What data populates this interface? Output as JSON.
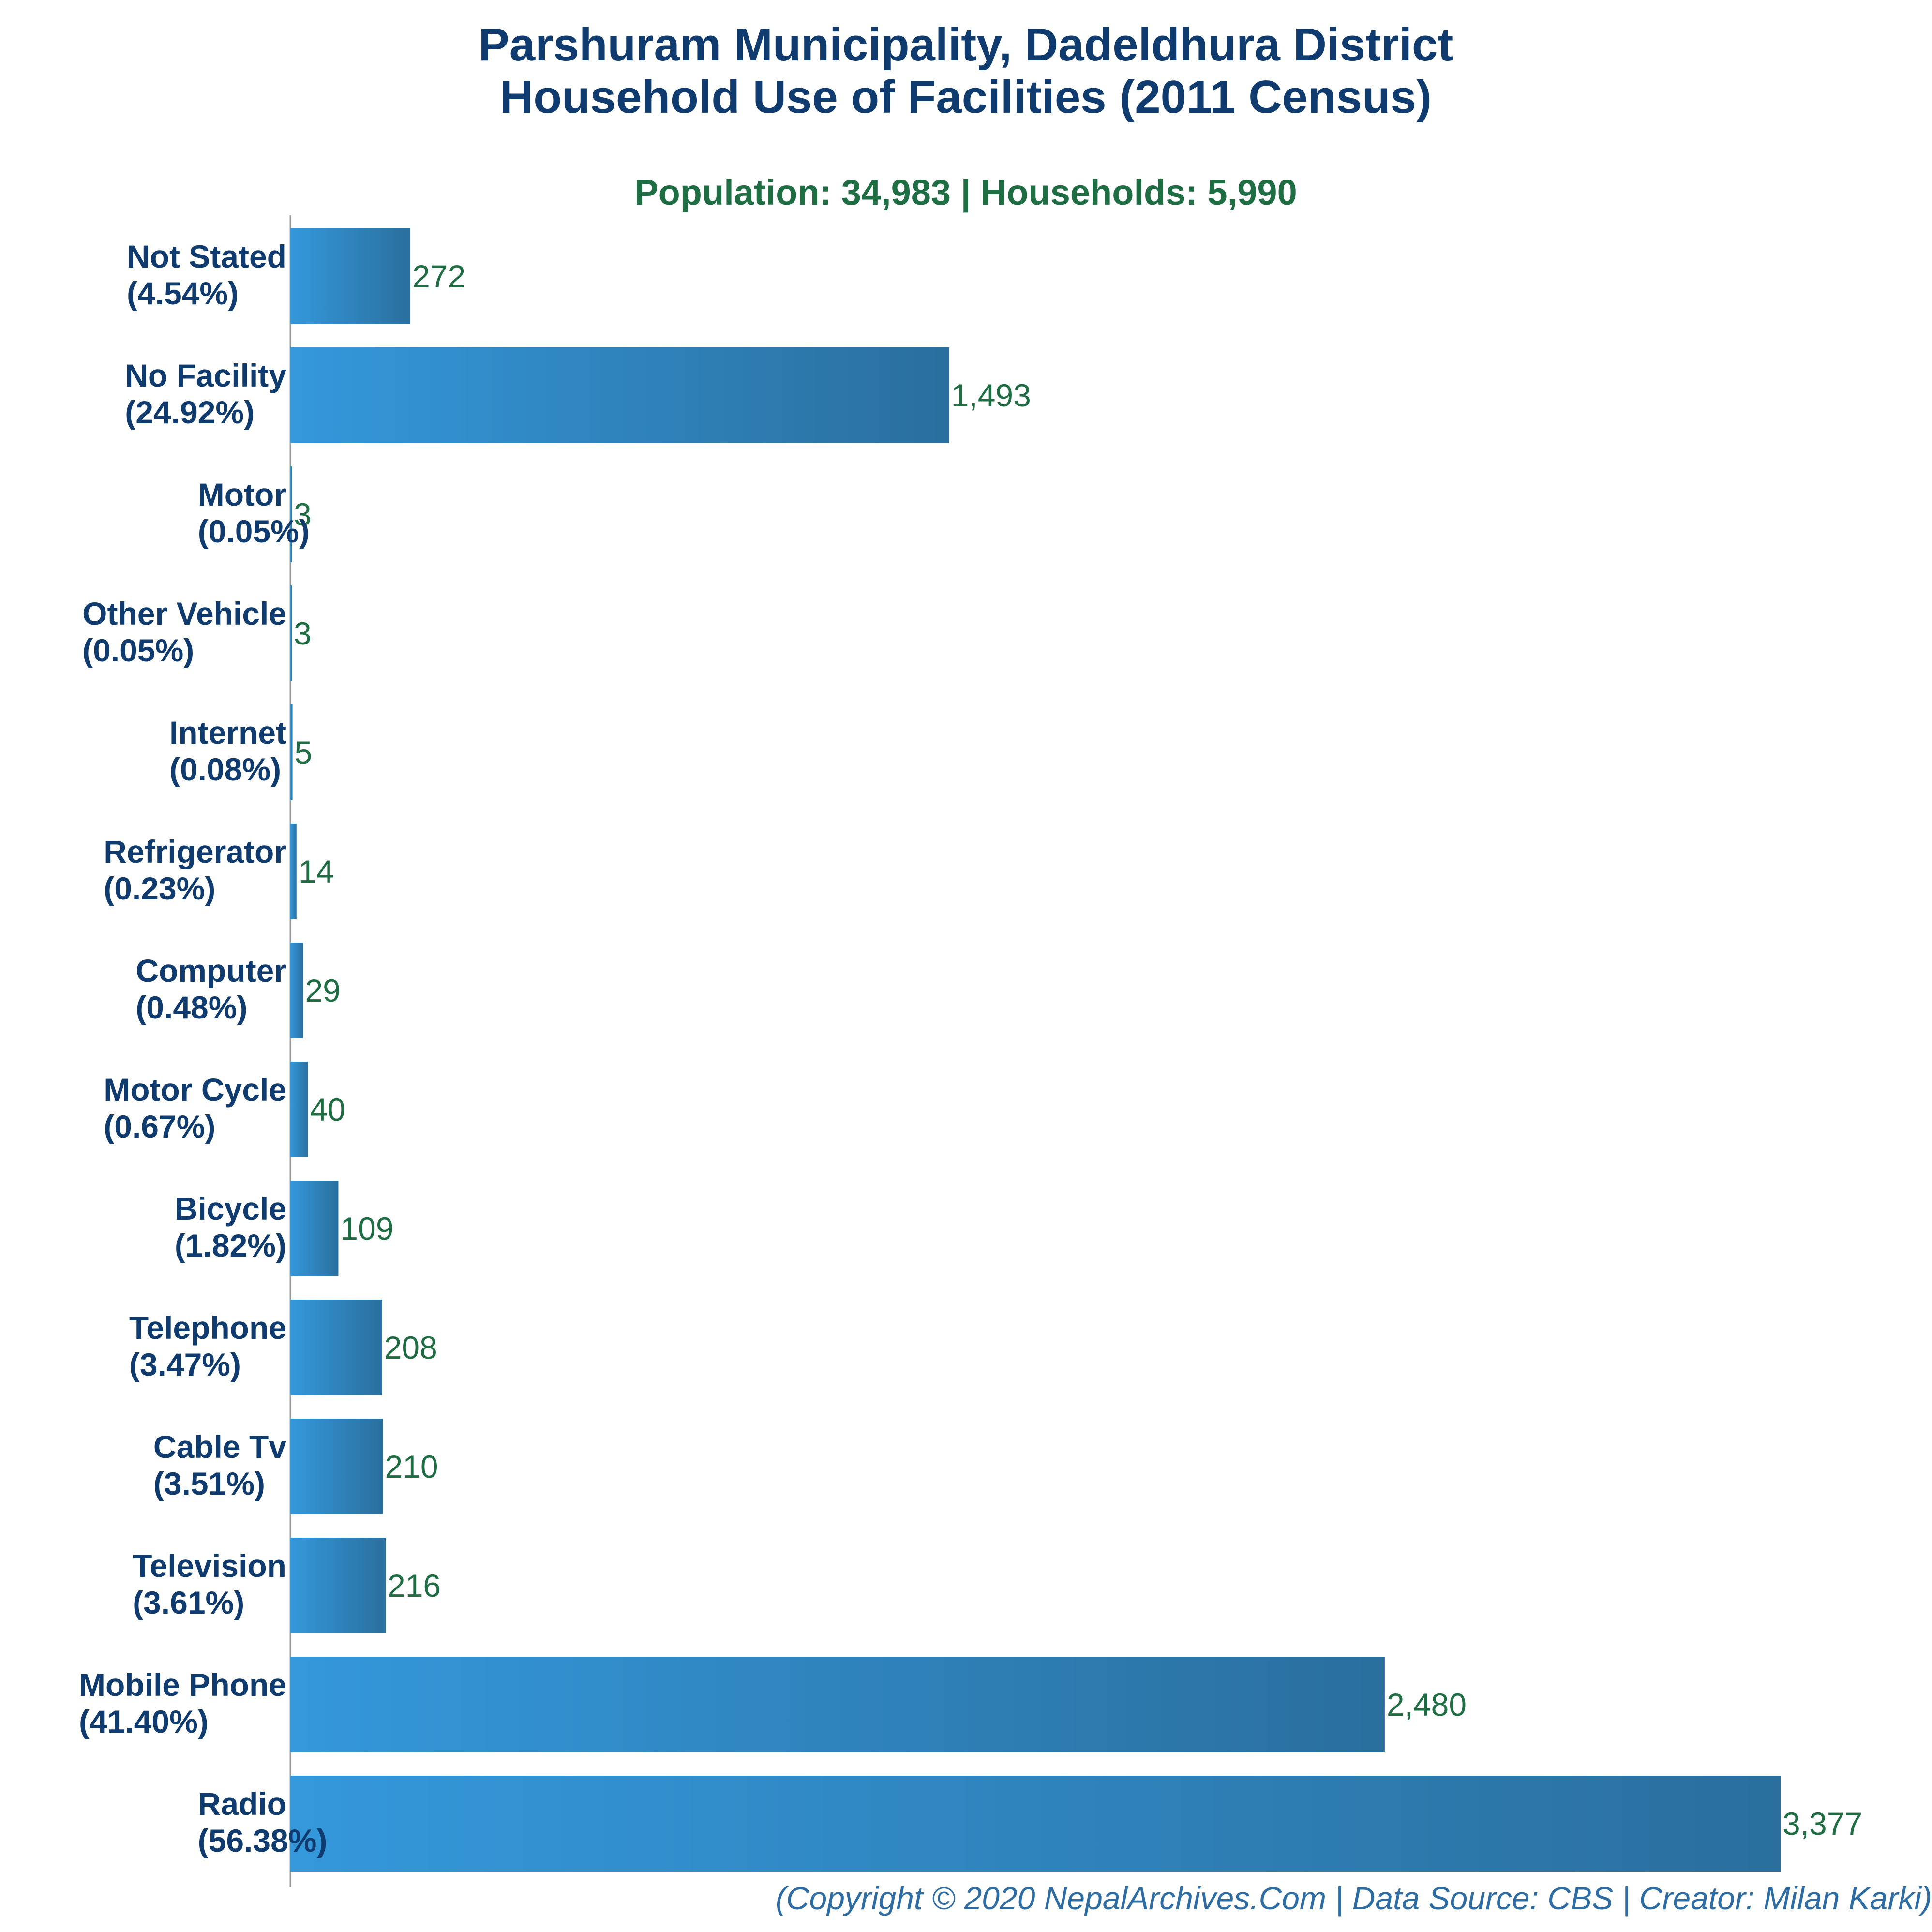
{
  "chart_data": {
    "type": "bar",
    "orientation": "horizontal",
    "title": [
      "Parshuram Municipality, Dadeldhura District",
      "Household Use of Facilities (2011 Census)"
    ],
    "subtitle": "Population: 34,983 | Households: 5,990",
    "categories": [
      "Not Stated",
      "No Facility",
      "Motor",
      "Other Vehicle",
      "Internet",
      "Refrigerator",
      "Computer",
      "Motor Cycle",
      "Bicycle",
      "Telephone",
      "Cable Tv",
      "Television",
      "Mobile Phone",
      "Radio"
    ],
    "percentages": [
      "(4.54%)",
      "(24.92%)",
      "(0.05%)",
      "(0.05%)",
      "(0.08%)",
      "(0.23%)",
      "(0.48%)",
      "(0.67%)",
      "(1.82%)",
      "(3.47%)",
      "(3.51%)",
      "(3.61%)",
      "(41.40%)",
      "(56.38%)"
    ],
    "values": [
      272,
      1493,
      3,
      3,
      5,
      14,
      29,
      40,
      109,
      208,
      210,
      216,
      2480,
      3377
    ],
    "value_labels": [
      "272",
      "1,493",
      "3",
      "3",
      "5",
      "14",
      "29",
      "40",
      "109",
      "208",
      "210",
      "216",
      "2,480",
      "3,377"
    ],
    "xlim": [
      0,
      3377
    ],
    "grid": false,
    "bar_color_start": "#3498db",
    "bar_color_end": "#2a6f9e",
    "footer": "(Copyright © 2020 NepalArchives.Com | Data Source: CBS | Creator: Milan Karki)"
  },
  "colors": {
    "title": "#0f3b6f",
    "subtitle": "#1f6e43",
    "value_label": "#1f6e43",
    "footer": "#2e6da4",
    "axis": "#999999"
  }
}
